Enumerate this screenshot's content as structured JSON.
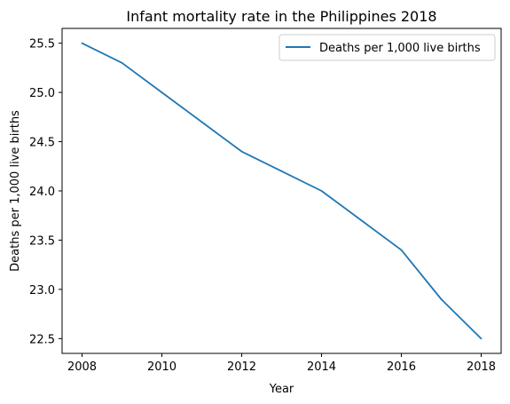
{
  "chart_data": {
    "type": "line",
    "title": "Infant mortality rate in the Philippines 2018",
    "xlabel": "Year",
    "ylabel": "Deaths per 1,000 live births",
    "x": [
      2008,
      2009,
      2010,
      2011,
      2012,
      2013,
      2014,
      2015,
      2016,
      2017,
      2018
    ],
    "series": [
      {
        "name": "Deaths per 1,000 live births",
        "values": [
          25.5,
          25.3,
          25.0,
          24.7,
          24.4,
          24.2,
          24.0,
          23.7,
          23.4,
          22.9,
          22.5
        ],
        "color": "#1f77b4"
      }
    ],
    "xlim": [
      2007.5,
      2018.5
    ],
    "ylim": [
      22.35,
      25.65
    ],
    "xticks": [
      "2008",
      "2010",
      "2012",
      "2014",
      "2016",
      "2018"
    ],
    "yticks": [
      "22.5",
      "23.0",
      "23.5",
      "24.0",
      "24.5",
      "25.0",
      "25.5"
    ],
    "grid": false,
    "legend_position": "top-right"
  }
}
